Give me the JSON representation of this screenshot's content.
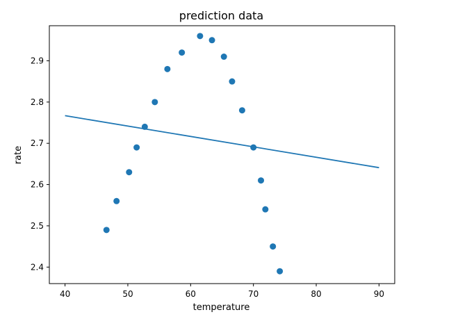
{
  "chart_data": {
    "type": "scatter",
    "title": "prediction data",
    "xlabel": "temperature",
    "ylabel": "rate",
    "xlim": [
      37.5,
      92.5
    ],
    "ylim": [
      2.36,
      2.985
    ],
    "xticks": [
      40,
      50,
      60,
      70,
      80,
      90
    ],
    "yticks": [
      2.4,
      2.5,
      2.6,
      2.7,
      2.8,
      2.9
    ],
    "xtick_labels": [
      "40",
      "50",
      "60",
      "70",
      "80",
      "90"
    ],
    "ytick_labels": [
      "2.4",
      "2.5",
      "2.6",
      "2.7",
      "2.8",
      "2.9"
    ],
    "grid": false,
    "legend": "none",
    "series": [
      {
        "type": "scatter",
        "color": "#1f77b4",
        "x": [
          46.6,
          48.2,
          50.2,
          51.4,
          52.7,
          54.3,
          56.3,
          58.6,
          61.5,
          63.4,
          65.3,
          66.6,
          68.2,
          70.0,
          71.2,
          71.9,
          73.1,
          74.2
        ],
        "y": [
          2.49,
          2.56,
          2.63,
          2.69,
          2.74,
          2.8,
          2.88,
          2.92,
          2.96,
          2.95,
          2.91,
          2.85,
          2.78,
          2.69,
          2.61,
          2.54,
          2.45,
          2.39
        ]
      },
      {
        "type": "line",
        "color": "#1f77b4",
        "x": [
          40,
          90
        ],
        "y": [
          2.767,
          2.641
        ]
      }
    ]
  }
}
